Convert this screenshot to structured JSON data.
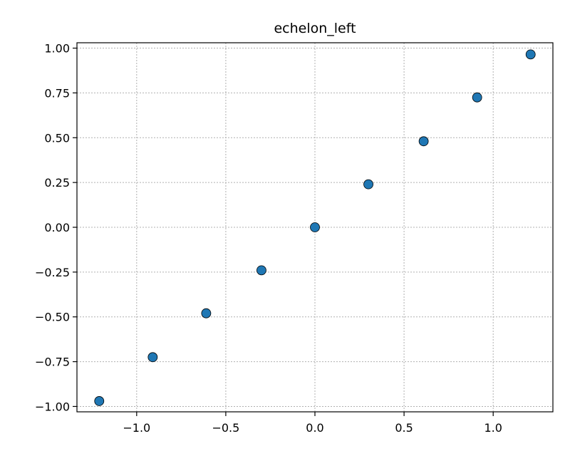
{
  "chart_data": {
    "type": "scatter",
    "title": "echelon_left",
    "xlabel": "",
    "ylabel": "",
    "xlim": [
      -1.335,
      1.335
    ],
    "ylim": [
      -1.03,
      1.03
    ],
    "xticks": [
      -1.0,
      -0.5,
      0.0,
      0.5,
      1.0
    ],
    "xtick_labels": [
      "−1.0",
      "−0.5",
      "0.0",
      "0.5",
      "1.0"
    ],
    "yticks": [
      -1.0,
      -0.75,
      -0.5,
      -0.25,
      0.0,
      0.25,
      0.5,
      0.75,
      1.0
    ],
    "ytick_labels": [
      "−1.00",
      "−0.75",
      "−0.50",
      "−0.25",
      "0.00",
      "0.25",
      "0.50",
      "0.75",
      "1.00"
    ],
    "grid": true,
    "series": [
      {
        "color": "#1f77b4",
        "x": [
          -1.21,
          -0.91,
          -0.61,
          -0.3,
          0.0,
          0.3,
          0.61,
          0.91,
          1.21
        ],
        "y": [
          -0.97,
          -0.725,
          -0.48,
          -0.24,
          0.0,
          0.24,
          0.48,
          0.725,
          0.965
        ]
      }
    ]
  }
}
